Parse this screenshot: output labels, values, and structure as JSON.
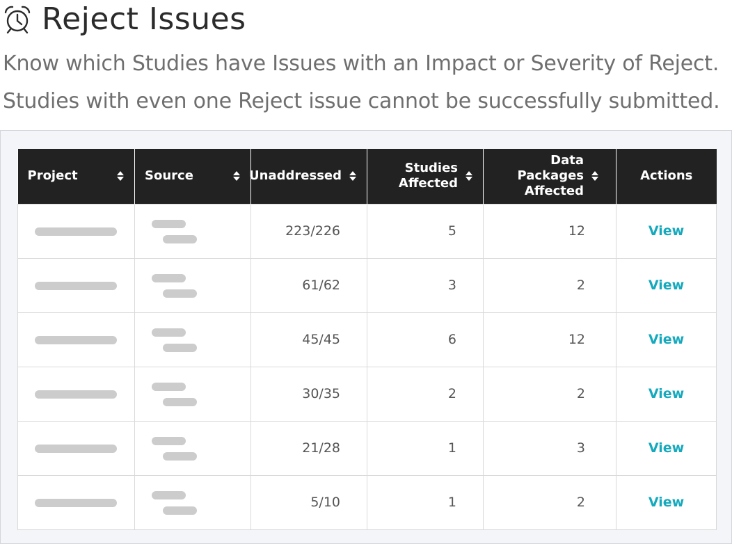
{
  "header": {
    "icon": "alarm-clock-icon",
    "title": "Reject Issues",
    "description_line1": "Know which Studies have Issues with an Impact or Severity of Reject.",
    "description_line2": "Studies with even one Reject issue cannot be successfully submitted."
  },
  "table": {
    "columns": {
      "project": "Project",
      "source": "Source",
      "unaddressed": "Unaddressed",
      "studies_affected_1": "Studies",
      "studies_affected_2": "Affected",
      "data_packages_1": "Data Packages",
      "data_packages_2": "Affected",
      "actions": "Actions"
    },
    "rows": [
      {
        "unaddressed": "223/226",
        "studies": "5",
        "packages": "12",
        "action": "View"
      },
      {
        "unaddressed": "61/62",
        "studies": "3",
        "packages": "2",
        "action": "View"
      },
      {
        "unaddressed": "45/45",
        "studies": "6",
        "packages": "12",
        "action": "View"
      },
      {
        "unaddressed": "30/35",
        "studies": "2",
        "packages": "2",
        "action": "View"
      },
      {
        "unaddressed": "21/28",
        "studies": "1",
        "packages": "3",
        "action": "View"
      },
      {
        "unaddressed": "5/10",
        "studies": "1",
        "packages": "2",
        "action": "View"
      }
    ]
  },
  "colors": {
    "header_bg": "#222222",
    "link": "#15a9bd",
    "placeholder": "#cccccc"
  }
}
